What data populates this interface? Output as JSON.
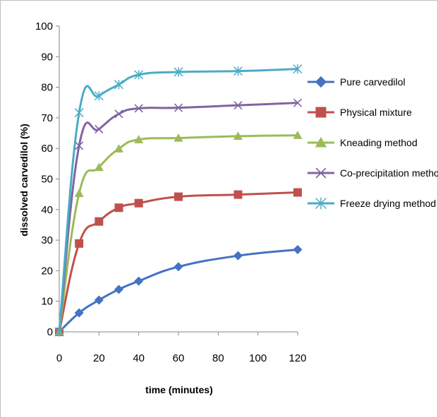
{
  "chart_data": {
    "type": "line",
    "title": "",
    "xlabel": "time (minutes)",
    "ylabel": "dissolved carvedilol (%)",
    "xlim": [
      0,
      120
    ],
    "ylim": [
      0,
      100
    ],
    "xticks": [
      0,
      20,
      40,
      60,
      80,
      100,
      120
    ],
    "yticks": [
      0,
      10,
      20,
      30,
      40,
      50,
      60,
      70,
      80,
      90,
      100
    ],
    "grid": false,
    "legend_position": "right",
    "x": [
      0,
      10,
      20,
      30,
      40,
      60,
      90,
      120
    ],
    "series": [
      {
        "name": "Pure carvedilol",
        "color": "#4472C4",
        "marker": "diamond",
        "values": [
          0,
          6.2,
          10.4,
          13.9,
          16.6,
          21.3,
          24.9,
          26.9
        ]
      },
      {
        "name": "Physical mixture",
        "color": "#C0504D",
        "marker": "square",
        "values": [
          0,
          28.9,
          36.1,
          40.6,
          42.1,
          44.2,
          44.9,
          45.6
        ]
      },
      {
        "name": "Kneading method",
        "color": "#9BBB59",
        "marker": "triangle",
        "values": [
          0,
          45.3,
          53.8,
          59.9,
          62.9,
          63.4,
          64.0,
          64.3
        ]
      },
      {
        "name": "Co-precipitation method",
        "color": "#8064A2",
        "marker": "x",
        "values": [
          0,
          60.9,
          66.3,
          71.3,
          73.1,
          73.3,
          74.1,
          74.9
        ]
      },
      {
        "name": "Freeze drying method",
        "color": "#4BACC6",
        "marker": "star",
        "values": [
          0,
          71.7,
          77.2,
          80.9,
          84.1,
          85.0,
          85.3,
          86.0
        ]
      }
    ]
  }
}
